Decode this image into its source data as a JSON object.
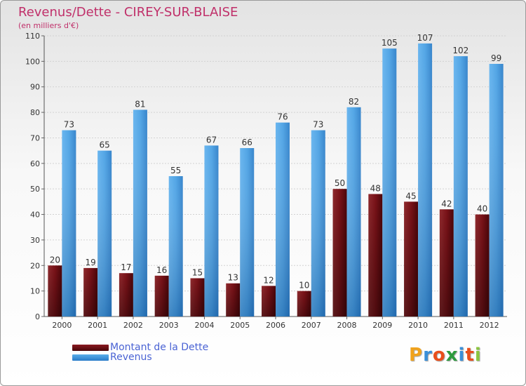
{
  "title": "Revenus/Dette - CIREY-SUR-BLAISE",
  "subtitle": "(en milliers d'€)",
  "logo": "Proxiti",
  "colors": {
    "dette": "#7a1218",
    "revenus": "#3d93dc",
    "title": "#c0306a",
    "legend_text": "#4a63d4"
  },
  "chart_data": {
    "type": "bar",
    "title": "Revenus/Dette - CIREY-SUR-BLAISE",
    "subtitle": "(en milliers d'€)",
    "categories": [
      "2000",
      "2001",
      "2002",
      "2003",
      "2004",
      "2005",
      "2006",
      "2007",
      "2008",
      "2009",
      "2010",
      "2011",
      "2012"
    ],
    "series": [
      {
        "name": "Montant de la Dette",
        "color": "#7a1218",
        "values": [
          20,
          19,
          17,
          16,
          15,
          13,
          12,
          10,
          50,
          48,
          45,
          42,
          40
        ]
      },
      {
        "name": "Revenus",
        "color": "#3d93dc",
        "values": [
          73,
          65,
          81,
          55,
          67,
          66,
          76,
          73,
          82,
          105,
          107,
          102,
          99
        ]
      }
    ],
    "ylim": [
      0,
      110
    ],
    "yticks": [
      0,
      10,
      20,
      30,
      40,
      50,
      60,
      70,
      80,
      90,
      100,
      110
    ],
    "grid": true,
    "legend": "bottom-left"
  }
}
